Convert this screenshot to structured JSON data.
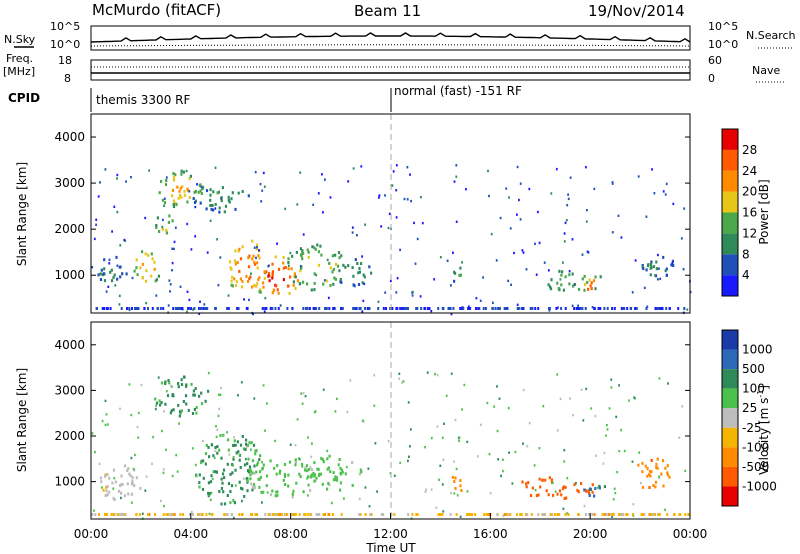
{
  "header": {
    "radar": "McMurdo (fitACF)",
    "beam": "Beam 11",
    "date": "19/Nov/2014"
  },
  "top_strip": {
    "nsky_label": "N.Sky",
    "nsearch_label": "N.Search",
    "left_ticks": [
      "10^5",
      "10^0"
    ],
    "right_ticks": [
      "10^5",
      "10^0"
    ]
  },
  "freq_strip": {
    "freq_label_1": "Freq.",
    "freq_label_2": "[MHz]",
    "nave_label": "Nave",
    "left_ticks": [
      "18",
      "8"
    ],
    "right_ticks": [
      "60",
      "0"
    ]
  },
  "cpid": {
    "label": "CPID",
    "mode_1": "themis 3300 RF",
    "mode_2": "normal (fast) -151 RF"
  },
  "colors": {
    "power_scale": [
      "#1a1aff",
      "#1f4fb8",
      "#2f8a5a",
      "#4aa84a",
      "#e6c619",
      "#ff8c00",
      "#ff5a00",
      "#e60000"
    ],
    "velocity_scale": [
      "#e60000",
      "#ff5a00",
      "#ff8c00",
      "#f5b400",
      "#bdbdbd",
      "#4cc24c",
      "#2f8a5a",
      "#2a6ab8",
      "#1a3aa8"
    ]
  },
  "chart_data": [
    {
      "type": "heatmap",
      "name": "power",
      "ylabel": "Slant Range [km]",
      "xlim": [
        0,
        24
      ],
      "ylim": [
        180,
        4500
      ],
      "yticks": [
        1000,
        2000,
        3000,
        4000
      ],
      "colorbar_label": "Power [dB]",
      "colorbar_ticks": [
        "4",
        "8",
        "12",
        "16",
        "20",
        "24",
        "28"
      ],
      "colorbar_range": [
        0,
        32
      ],
      "blobs": [
        {
          "t": 0.8,
          "r": 1100,
          "dt": 0.6,
          "dr": 350,
          "v": 10
        },
        {
          "t": 2.2,
          "r": 1200,
          "dt": 0.6,
          "dr": 400,
          "v": 22
        },
        {
          "t": 3.5,
          "r": 2900,
          "dt": 1.0,
          "dr": 400,
          "v": 20
        },
        {
          "t": 5.2,
          "r": 2700,
          "dt": 1.2,
          "dr": 300,
          "v": 12
        },
        {
          "t": 2.9,
          "r": 2100,
          "dt": 0.4,
          "dr": 300,
          "v": 18
        },
        {
          "t": 6.2,
          "r": 1200,
          "dt": 0.8,
          "dr": 600,
          "v": 26
        },
        {
          "t": 7.4,
          "r": 1000,
          "dt": 1.0,
          "dr": 450,
          "v": 29
        },
        {
          "t": 9.0,
          "r": 1200,
          "dt": 1.2,
          "dr": 500,
          "v": 18
        },
        {
          "t": 10.5,
          "r": 1100,
          "dt": 0.7,
          "dr": 350,
          "v": 11
        },
        {
          "t": 14.7,
          "r": 1000,
          "dt": 0.25,
          "dr": 250,
          "v": 12
        },
        {
          "t": 19.3,
          "r": 900,
          "dt": 1.3,
          "dr": 250,
          "v": 16
        },
        {
          "t": 20.1,
          "r": 800,
          "dt": 0.5,
          "dr": 150,
          "v": 29
        },
        {
          "t": 22.6,
          "r": 1250,
          "dt": 0.7,
          "dr": 300,
          "v": 10
        }
      ]
    },
    {
      "type": "heatmap",
      "name": "velocity",
      "ylabel": "Slant Range [km]",
      "xlabel": "Time UT",
      "xlim": [
        0,
        24
      ],
      "ylim": [
        180,
        4500
      ],
      "yticks": [
        1000,
        2000,
        3000,
        4000
      ],
      "xticks": [
        "00:00",
        "04:00",
        "08:00",
        "12:00",
        "16:00",
        "20:00",
        "00:00"
      ],
      "colorbar_label": "Velocity [m s^-1]",
      "colorbar_ticks": [
        "1000",
        "500",
        "100",
        "25",
        "-25",
        "-100",
        "-500",
        "-1000"
      ],
      "blobs": [
        {
          "t": 1.2,
          "r": 1000,
          "dt": 0.9,
          "dr": 400,
          "v": 4
        },
        {
          "t": 3.6,
          "r": 2900,
          "dt": 1.1,
          "dr": 450,
          "v": 6
        },
        {
          "t": 5.5,
          "r": 1300,
          "dt": 1.4,
          "dr": 800,
          "v": 6
        },
        {
          "t": 7.6,
          "r": 1100,
          "dt": 1.4,
          "dr": 450,
          "v": 5
        },
        {
          "t": 9.6,
          "r": 1200,
          "dt": 1.2,
          "dr": 400,
          "v": 5
        },
        {
          "t": 14.7,
          "r": 1000,
          "dt": 0.3,
          "dr": 250,
          "v": 2
        },
        {
          "t": 18.6,
          "r": 900,
          "dt": 1.6,
          "dr": 250,
          "v": 1
        },
        {
          "t": 20.2,
          "r": 800,
          "dt": 0.7,
          "dr": 150,
          "v": 7
        },
        {
          "t": 22.5,
          "r": 1200,
          "dt": 0.8,
          "dr": 350,
          "v": 2
        }
      ]
    }
  ],
  "axes": {
    "power_ylabel": "Slant Range [km]",
    "velocity_ylabel": "Slant Range [km]",
    "xlabel": "Time UT",
    "power_bar_label": "Power [dB]",
    "velocity_bar_label": "Velocity [m s",
    "velocity_bar_sup": "-1",
    "velocity_bar_close": "]"
  }
}
